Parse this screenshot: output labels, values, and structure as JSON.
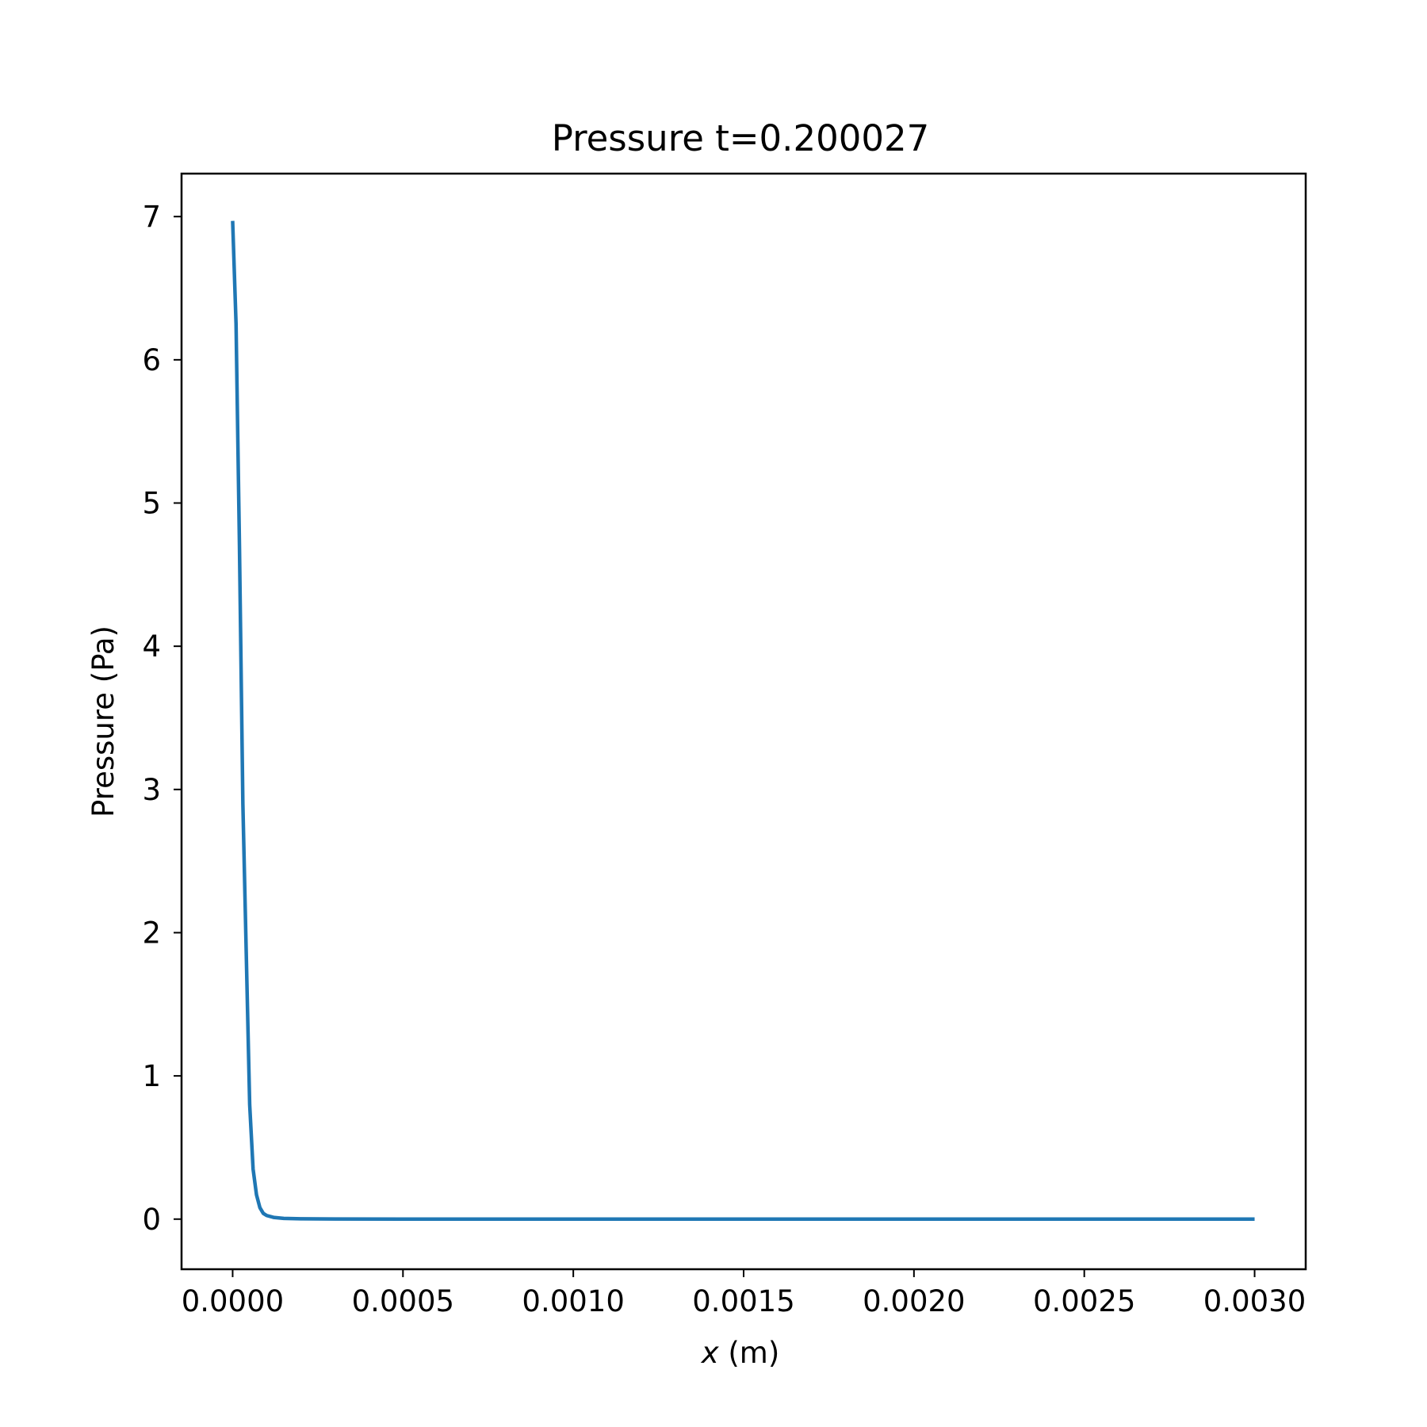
{
  "chart_data": {
    "type": "line",
    "title": "Pressure t=0.200027",
    "xlabel_var": "x",
    "xlabel_unit": " (m)",
    "ylabel": "Pressure (Pa)",
    "xlim": [
      -0.00015,
      0.00315
    ],
    "ylim": [
      -0.35,
      7.3
    ],
    "x_ticks": [
      0.0,
      0.0005,
      0.001,
      0.0015,
      0.002,
      0.0025,
      0.003
    ],
    "x_tick_labels": [
      "0.0000",
      "0.0005",
      "0.0010",
      "0.0015",
      "0.0020",
      "0.0025",
      "0.0030"
    ],
    "y_ticks": [
      0,
      1,
      2,
      3,
      4,
      5,
      6,
      7
    ],
    "y_tick_labels": [
      "0",
      "1",
      "2",
      "3",
      "4",
      "5",
      "6",
      "7"
    ],
    "grid": false,
    "series": [
      {
        "color": "#1f77b4",
        "x": [
          0.0,
          1e-05,
          2e-05,
          3e-05,
          4e-05,
          5e-05,
          6e-05,
          7e-05,
          8e-05,
          9e-05,
          0.0001,
          0.00012,
          0.00015,
          0.0002,
          0.0003,
          0.0005,
          0.001,
          0.0015,
          0.002,
          0.0025,
          0.003
        ],
        "y": [
          6.97,
          6.25,
          4.7,
          2.9,
          1.85,
          0.8,
          0.35,
          0.17,
          0.08,
          0.04,
          0.025,
          0.012,
          0.005,
          0.002,
          0.001,
          0.0,
          0.0,
          0.0,
          0.0,
          0.0,
          0.0
        ]
      }
    ]
  }
}
